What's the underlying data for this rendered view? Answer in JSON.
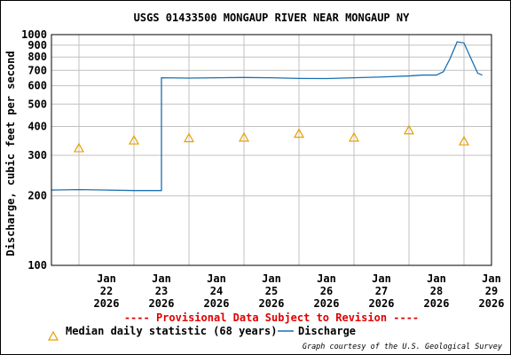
{
  "chart_data": {
    "type": "line",
    "title": "USGS 01433500 MONGAUP RIVER NEAR MONGAUP NY",
    "ylabel": "Discharge, cubic feet per second",
    "xlabel": "",
    "yscale": "log",
    "ylim": [
      100,
      1000
    ],
    "xlim": [
      "2026-01-21 12:00",
      "2026-01-29 12:00"
    ],
    "grid": true,
    "y_ticks": [
      "100",
      "200",
      "300",
      "400",
      "500",
      "600",
      "700",
      "800",
      "900",
      "1000"
    ],
    "x_ticks": [
      {
        "month": "Jan",
        "day": "22",
        "year": "2026"
      },
      {
        "month": "Jan",
        "day": "23",
        "year": "2026"
      },
      {
        "month": "Jan",
        "day": "24",
        "year": "2026"
      },
      {
        "month": "Jan",
        "day": "25",
        "year": "2026"
      },
      {
        "month": "Jan",
        "day": "26",
        "year": "2026"
      },
      {
        "month": "Jan",
        "day": "27",
        "year": "2026"
      },
      {
        "month": "Jan",
        "day": "28",
        "year": "2026"
      },
      {
        "month": "Jan",
        "day": "29",
        "year": "2026"
      }
    ],
    "series": [
      {
        "name": "Discharge",
        "color": "#1a6fb0",
        "points": [
          [
            "2026-01-21 12:00",
            212
          ],
          [
            "2026-01-22 00:00",
            213
          ],
          [
            "2026-01-22 12:00",
            212
          ],
          [
            "2026-01-23 00:00",
            211
          ],
          [
            "2026-01-23 12:00",
            211
          ],
          [
            "2026-01-23 12:00",
            370
          ],
          [
            "2026-01-23 12:00",
            650
          ],
          [
            "2026-01-24 00:00",
            648
          ],
          [
            "2026-01-24 12:00",
            650
          ],
          [
            "2026-01-25 00:00",
            652
          ],
          [
            "2026-01-25 12:00",
            650
          ],
          [
            "2026-01-26 00:00",
            646
          ],
          [
            "2026-01-26 12:00",
            645
          ],
          [
            "2026-01-27 00:00",
            650
          ],
          [
            "2026-01-27 12:00",
            655
          ],
          [
            "2026-01-28 00:00",
            662
          ],
          [
            "2026-01-28 06:00",
            668
          ],
          [
            "2026-01-28 12:00",
            668
          ],
          [
            "2026-01-28 15:00",
            690
          ],
          [
            "2026-01-28 18:00",
            790
          ],
          [
            "2026-01-28 21:00",
            930
          ],
          [
            "2026-01-29 00:00",
            920
          ],
          [
            "2026-01-29 03:00",
            790
          ],
          [
            "2026-01-29 06:00",
            680
          ],
          [
            "2026-01-29 08:00",
            668
          ]
        ]
      },
      {
        "name": "Median daily statistic (68 years)",
        "color": "#e8a000",
        "marker": "triangle",
        "points": [
          [
            "2026-01-22",
            322
          ],
          [
            "2026-01-23",
            348
          ],
          [
            "2026-01-24",
            356
          ],
          [
            "2026-01-25",
            358
          ],
          [
            "2026-01-26",
            372
          ],
          [
            "2026-01-27",
            358
          ],
          [
            "2026-01-28",
            385
          ],
          [
            "2026-01-29",
            345
          ]
        ]
      }
    ],
    "annotations": {
      "provisional": "---- Provisional Data Subject to Revision ----",
      "credit": "Graph courtesy of the U.S. Geological Survey"
    },
    "legend": {
      "placement": "bottom",
      "median_label": "Median daily statistic (68 years)",
      "discharge_label": "Discharge"
    },
    "colors": {
      "grid": "#c0c0c0",
      "axis": "#000000",
      "provisional": "#e00000"
    }
  }
}
